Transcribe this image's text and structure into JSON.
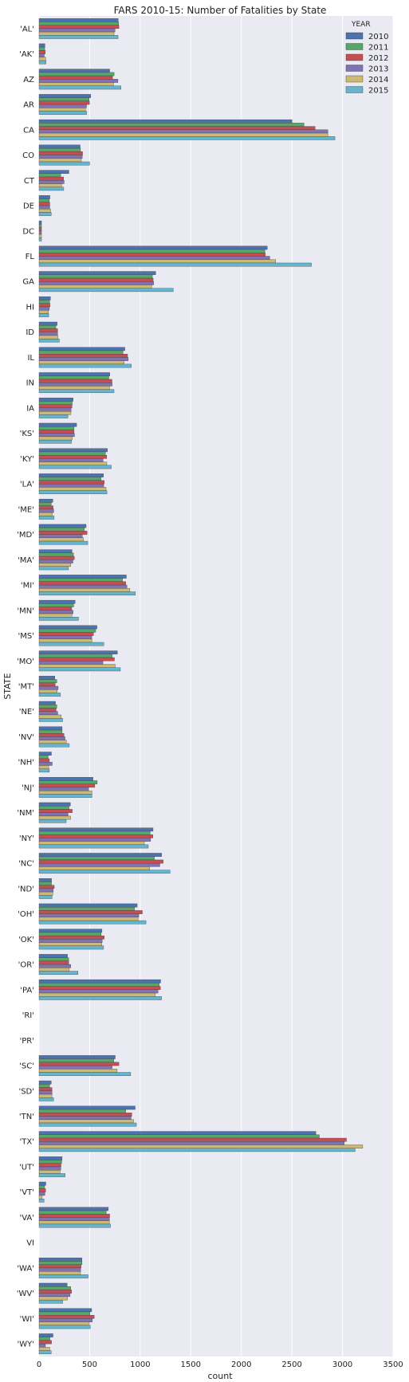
{
  "chart_data": {
    "type": "bar",
    "orientation": "horizontal",
    "title": "FARS 2010-15: Number of Fatalities by State",
    "xlabel": "count",
    "ylabel": "STATE",
    "xlim": [
      0,
      3500
    ],
    "xticks": [
      0,
      500,
      1000,
      1500,
      2000,
      2500,
      3000,
      3500
    ],
    "grid": true,
    "legend": {
      "title": "YEAR",
      "placement": "top-right"
    },
    "categories": [
      "'AL'",
      "'AK'",
      "AZ",
      "AR",
      "CA",
      "CO",
      "CT",
      "DE",
      "DC",
      "FL",
      "GA",
      "HI",
      "ID",
      "IL",
      "IN",
      "IA",
      "'KS'",
      "'KY'",
      "'LA'",
      "'ME'",
      "'MD'",
      "'MA'",
      "'MI'",
      "'MN'",
      "'MS'",
      "'MO'",
      "'MT'",
      "'NE'",
      "'NV'",
      "'NH'",
      "'NJ'",
      "'NM'",
      "'NY'",
      "'NC'",
      "'ND'",
      "'OH'",
      "'OK'",
      "'OR'",
      "'PA'",
      "'RI'",
      "'PR'",
      "'SC'",
      "'SD'",
      "'TN'",
      "'TX'",
      "'UT'",
      "'VT'",
      "'VA'",
      "VI",
      "'WA'",
      "'WV'",
      "'WI'",
      "'WY'"
    ],
    "series": [
      {
        "name": "2010",
        "color": "#4c72b0",
        "values": [
          782,
          58,
          698,
          511,
          2501,
          406,
          295,
          107,
          24,
          2256,
          1153,
          113,
          179,
          848,
          700,
          337,
          371,
          676,
          636,
          136,
          465,
          326,
          863,
          357,
          572,
          774,
          156,
          162,
          228,
          122,
          533,
          310,
          1127,
          1212,
          123,
          970,
          622,
          281,
          1202,
          0,
          0,
          753,
          120,
          950,
          2737,
          228,
          67,
          685,
          0,
          424,
          278,
          520,
          138
        ]
      },
      {
        "name": "2011",
        "color": "#55a868",
        "values": [
          787,
          56,
          742,
          495,
          2620,
          410,
          214,
          101,
          24,
          2233,
          1120,
          104,
          166,
          830,
          690,
          328,
          346,
          656,
          613,
          121,
          447,
          340,
          826,
          342,
          560,
          722,
          176,
          176,
          228,
          90,
          575,
          296,
          1099,
          1140,
          123,
          944,
          614,
          294,
          1188,
          0,
          0,
          739,
          104,
          857,
          2771,
          224,
          55,
          665,
          0,
          425,
          313,
          503,
          107
        ]
      },
      {
        "name": "2012",
        "color": "#c44e52",
        "values": [
          789,
          62,
          726,
          499,
          2729,
          430,
          243,
          106,
          24,
          2236,
          1128,
          108,
          184,
          875,
          721,
          326,
          346,
          669,
          645,
          139,
          474,
          349,
          857,
          323,
          538,
          745,
          159,
          169,
          246,
          102,
          551,
          328,
          1126,
          1227,
          150,
          1021,
          645,
          293,
          1200,
          0,
          0,
          789,
          128,
          917,
          3039,
          217,
          65,
          698,
          0,
          415,
          321,
          545,
          123
        ]
      },
      {
        "name": "2013",
        "color": "#8172b2",
        "values": [
          751,
          51,
          780,
          469,
          2855,
          427,
          248,
          106,
          24,
          2281,
          1133,
          102,
          183,
          882,
          722,
          317,
          350,
          633,
          639,
          145,
          427,
          335,
          869,
          336,
          521,
          631,
          189,
          185,
          257,
          130,
          490,
          287,
          1103,
          1194,
          140,
          986,
          624,
          313,
          1176,
          0,
          0,
          722,
          128,
          910,
          3018,
          215,
          58,
          696,
          0,
          411,
          307,
          527,
          63
        ]
      },
      {
        "name": "2014",
        "color": "#ccb974",
        "values": [
          741,
          65,
          736,
          459,
          2855,
          418,
          222,
          114,
          24,
          2339,
          1113,
          93,
          186,
          841,
          697,
          315,
          328,
          670,
          662,
          131,
          439,
          314,
          898,
          326,
          523,
          753,
          180,
          219,
          271,
          95,
          523,
          312,
          1041,
          1093,
          136,
          980,
          621,
          299,
          1150,
          0,
          0,
          772,
          127,
          935,
          3200,
          207,
          31,
          696,
          0,
          410,
          282,
          497,
          106
        ]
      },
      {
        "name": "2015",
        "color": "#64b5cd",
        "values": [
          781,
          68,
          810,
          470,
          2925,
          500,
          244,
          120,
          24,
          2693,
          1327,
          95,
          200,
          913,
          741,
          285,
          320,
          714,
          671,
          149,
          481,
          291,
          953,
          390,
          640,
          804,
          212,
          233,
          299,
          102,
          523,
          268,
          1080,
          1295,
          128,
          1057,
          638,
          385,
          1211,
          0,
          0,
          906,
          143,
          962,
          3125,
          258,
          49,
          706,
          0,
          485,
          233,
          507,
          120
        ]
      }
    ]
  }
}
